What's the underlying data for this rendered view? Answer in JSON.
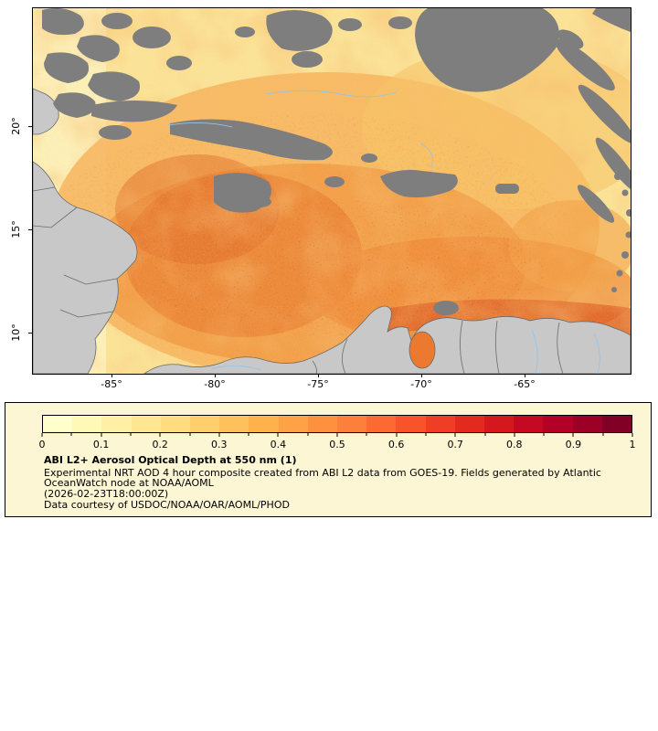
{
  "colors": {
    "legend_background": "#fcf6d4",
    "cloud_gray": "#7e7e7e",
    "land_gray": "#c8c8c8",
    "river_blue": "#93c4ea"
  },
  "map": {
    "lat_ticks": [
      "20°",
      "15°",
      "10°"
    ],
    "lon_ticks": [
      "-85°",
      "-80°",
      "-75°",
      "-70°",
      "-65°"
    ]
  },
  "legend": {
    "title": "ABI L2+ Aerosol Optical Depth at 550 nm (1)",
    "lines": [
      "Experimental NRT AOD 4 hour composite created from ABI L2 data from GOES-19. Fields generated by Atlantic",
      "OceanWatch node at NOAA/AOML",
      "(2026-02-23T18:00:00Z)",
      "Data courtesy of USDOC/NOAA/OAR/AOML/PHOD"
    ]
  },
  "chart_data": {
    "type": "heatmap",
    "title": "ABI L2+ Aerosol Optical Depth at 550 nm (1)",
    "colorbar": {
      "min": 0,
      "max": 1,
      "tick_labels": [
        "0",
        "0.1",
        "0.2",
        "0.3",
        "0.4",
        "0.5",
        "0.6",
        "0.7",
        "0.8",
        "0.9",
        "1"
      ],
      "colors": [
        "#ffffcc",
        "#fff9b8",
        "#fff0a5",
        "#fee692",
        "#fedc7f",
        "#fecf6c",
        "#fec15c",
        "#feb24c",
        "#fda246",
        "#fd9140",
        "#fc7f3b",
        "#fc6933",
        "#f9532c",
        "#ef3e25",
        "#e32a1e",
        "#d5171e",
        "#c60923",
        "#b30026",
        "#9c0026",
        "#800026"
      ],
      "label_positions_percent": [
        0,
        10,
        20,
        30,
        40,
        50,
        60,
        70,
        80,
        90,
        100
      ]
    },
    "x_tick_labels": [
      "-85°",
      "-80°",
      "-75°",
      "-70°",
      "-65°"
    ],
    "y_tick_labels": [
      "20°",
      "15°",
      "10°"
    ]
  }
}
